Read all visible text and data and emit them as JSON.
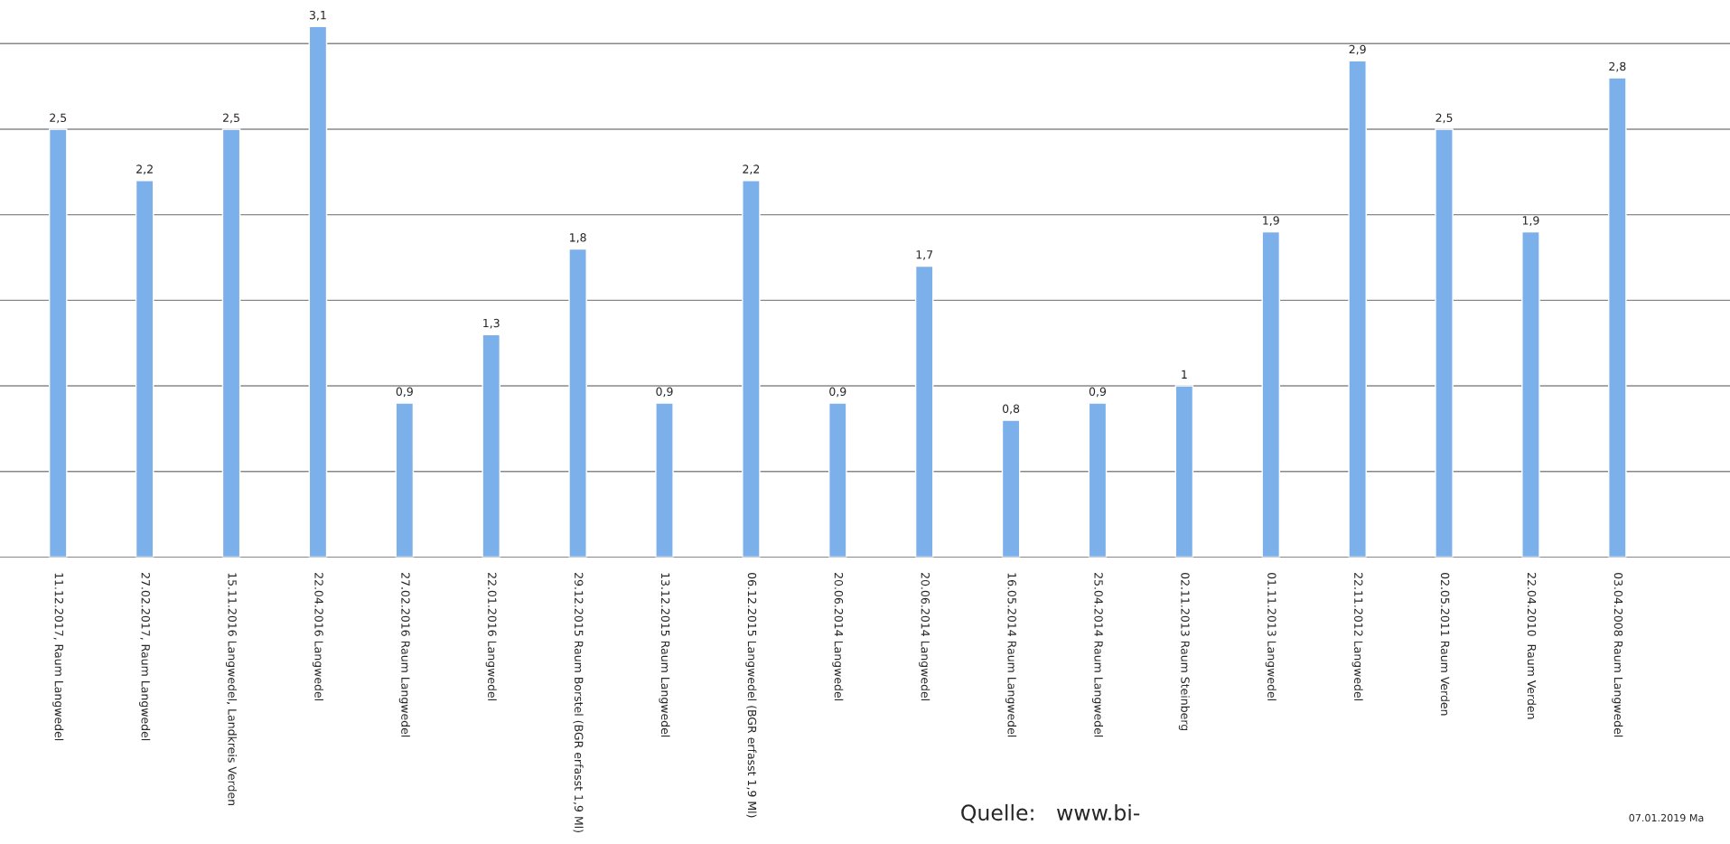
{
  "chart_data": {
    "type": "bar",
    "categories": [
      "11.12.2017, Raum Langwedel",
      "27.02.2017, Raum Langwedel",
      "15.11.2016 Langwedel, Landkreis Verden",
      "22.04.2016 Langwedel",
      "27.02.2016 Raum Langwedel",
      "22.01.2016 Langwedel",
      "29.12.2015 Raum Borstel (BGR erfasst 1,9 Ml)",
      "13.12.2015 Raum Langwedel",
      "06.12.2015 Langwedel (BGR erfasst 1,9 Ml)",
      "20.06.2014 Langwedel",
      "20.06.2014 Langwedel",
      "16.05.2014 Raum Langwedel",
      "25.04.2014 Raum Langwedel",
      "02.11.2013 Raum Steinberg",
      "01.11.2013 Langwedel",
      "22.11.2012 Langwedel",
      "02.05.2011 Raum Verden",
      "22.04.2010  Raum Verden",
      "03.04.2008 Raum Langwedel"
    ],
    "values": [
      2.5,
      2.2,
      2.5,
      3.1,
      0.9,
      1.3,
      1.8,
      0.9,
      2.2,
      0.9,
      1.7,
      0.8,
      0.9,
      1,
      1.9,
      2.9,
      2.5,
      1.9,
      2.8
    ],
    "value_labels": [
      "2,5",
      "2,2",
      "2,5",
      "3,1",
      "0,9",
      "1,3",
      "1,8",
      "0,9",
      "2,2",
      "0,9",
      "1,7",
      "0,8",
      "0,9",
      "1",
      "1,9",
      "2,9",
      "2,5",
      "1,9",
      "2,8"
    ],
    "color": "#7cb0ea",
    "yticks": [
      {
        "value": 0.5,
        "label": null
      },
      {
        "value": 1,
        "label": null
      },
      {
        "value": 1.5,
        "label": null
      },
      {
        "value": 2,
        "label": null
      },
      {
        "value": 2.5,
        "label": null
      },
      {
        "value": 3,
        "label": null
      }
    ],
    "tick_labels": "x",
    "grid": "y",
    "legend": false,
    "annotations": [
      "Quelle:   www.bi-",
      "07.01.2019 Ma"
    ]
  }
}
